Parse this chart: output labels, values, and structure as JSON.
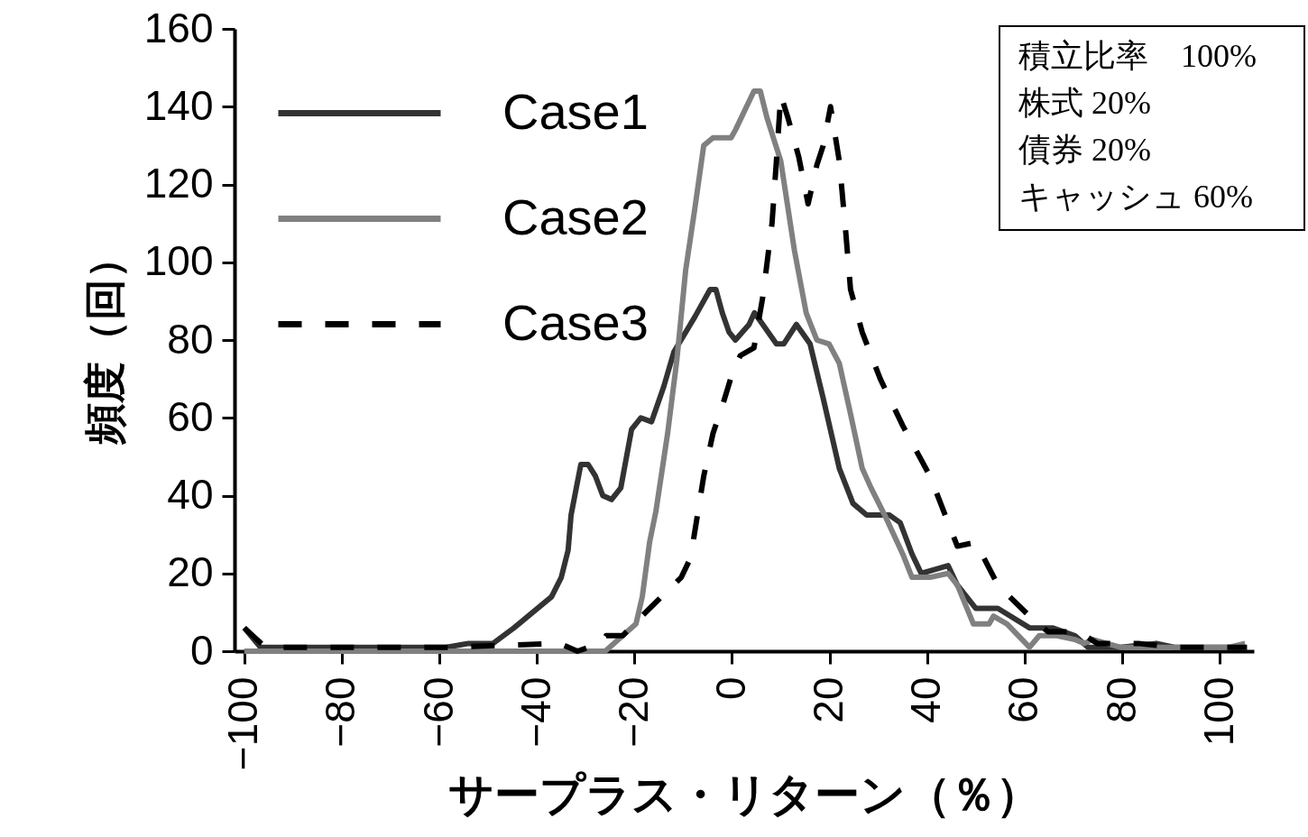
{
  "chart_data": {
    "type": "line",
    "xlabel": "サープラス・リターン（％）",
    "ylabel": "頻度（回）",
    "xlim": [
      -102,
      107
    ],
    "xticks": [
      -100,
      -80,
      -60,
      -40,
      -20,
      0,
      20,
      40,
      60,
      80,
      100
    ],
    "ylim": [
      0,
      160
    ],
    "yticks": [
      0,
      20,
      40,
      60,
      80,
      100,
      120,
      140,
      160
    ],
    "grid": false,
    "legend": "top left",
    "annotations": [
      "積立比率　100%",
      "株式 20%",
      "債券 20%",
      "キャッシュ 60%"
    ],
    "series": [
      {
        "name": "Case1",
        "color": "#333333",
        "line_style": "solid",
        "x": [
          -100,
          -96.7,
          -58.6,
          -54,
          -49,
          -44.7,
          -37,
          -35,
          -33.6,
          -33,
          -31,
          -29.5,
          -28,
          -26.5,
          -24.7,
          -22.8,
          -20.6,
          -18.7,
          -16.5,
          -14,
          -11.9,
          -7.6,
          -4.5,
          -3.3,
          -2,
          -0.6,
          0.7,
          3.5,
          4.6,
          6.3,
          9.1,
          10.6,
          13.2,
          16,
          18.7,
          22,
          24.8,
          27.6,
          32.3,
          34.5,
          36.9,
          38.8,
          41.6,
          44.3,
          46.2,
          50,
          54.5,
          61,
          65.7,
          70.3,
          73,
          79.6,
          87,
          90.7,
          104.6
        ],
        "values": [
          6,
          1,
          1,
          2,
          2,
          6,
          14,
          19,
          26,
          35,
          48,
          48,
          45,
          40,
          39,
          42,
          57,
          60,
          59,
          68,
          77,
          86,
          93,
          93,
          87,
          82,
          80,
          84,
          87,
          84,
          79,
          79,
          84,
          79,
          65,
          47,
          38,
          35,
          35,
          33,
          25,
          20,
          21,
          22,
          17,
          11,
          11,
          6,
          6,
          4,
          1,
          1,
          2,
          1,
          1
        ]
      },
      {
        "name": "Case2",
        "color": "#808080",
        "line_style": "solid",
        "x": [
          -100,
          -26,
          -22.4,
          -19.7,
          -18.4,
          -16.9,
          -15.6,
          -13.2,
          -11.3,
          -9.5,
          -7.6,
          -5.8,
          -3.9,
          -0.2,
          0.7,
          4.5,
          5.8,
          7.2,
          10,
          12.8,
          15.2,
          17.4,
          19.9,
          22,
          24.3,
          26.7,
          28.5,
          31.3,
          35,
          36.9,
          40.6,
          44.3,
          46.2,
          49.5,
          52.7,
          53.6,
          56.4,
          61,
          63,
          66.6,
          70.3,
          72.2,
          74,
          76.8,
          79.6,
          96.3,
          101.9,
          105.2
        ],
        "values": [
          0,
          0,
          4,
          7,
          14,
          28,
          36,
          56,
          75,
          98,
          114,
          130,
          132,
          132,
          134,
          144,
          144,
          137,
          126,
          103,
          87,
          80,
          79,
          74,
          61,
          47,
          42,
          35,
          25,
          19,
          19,
          20,
          17,
          7,
          7,
          9,
          7,
          1,
          4,
          4,
          3,
          2,
          3,
          2,
          1,
          1,
          1,
          2
        ]
      },
      {
        "name": "Case3",
        "color": "#000000",
        "line_style": "dashed",
        "x": [
          -100,
          -95.7,
          -58.6,
          -35.4,
          -31.7,
          -27,
          -25.8,
          -22.4,
          -16.9,
          -10.4,
          -8.5,
          -5.8,
          -3.9,
          -2,
          0.2,
          1.7,
          4.5,
          6.3,
          8.2,
          9.1,
          10,
          11.5,
          13.7,
          15.6,
          17.4,
          18.7,
          20.2,
          22,
          23.3,
          24.3,
          26.7,
          30.4,
          35,
          40.6,
          46.2,
          50,
          54.5,
          61,
          64.8,
          71.2,
          74.9,
          79.6,
          83.3,
          90.7,
          105.6
        ],
        "values": [
          6,
          1,
          1,
          2,
          0,
          2,
          4,
          4,
          11,
          19,
          24,
          45,
          56,
          63,
          72,
          76,
          78,
          91,
          110,
          126,
          143,
          137,
          127,
          115,
          125,
          130,
          140,
          126,
          108,
          93,
          82,
          70,
          58,
          45,
          27,
          28,
          17,
          9,
          5,
          5,
          2,
          2,
          2,
          1,
          1
        ]
      }
    ]
  }
}
